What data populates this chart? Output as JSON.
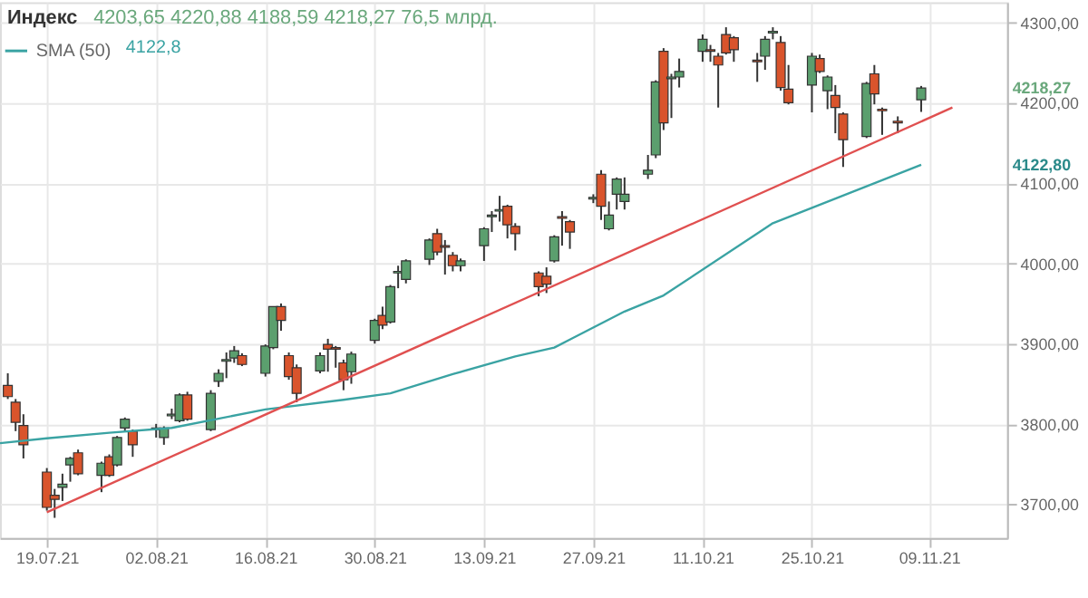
{
  "chart_data": {
    "type": "candlestick",
    "title": "Индекс",
    "subtitle": "4203,65   4220,88   4188,59   4218,27   76,5 млрд.",
    "x": [
      "2021-07-14",
      "2021-07-15",
      "2021-07-16",
      "2021-07-19",
      "2021-07-20",
      "2021-07-21",
      "2021-07-22",
      "2021-07-23",
      "2021-07-26",
      "2021-07-27",
      "2021-07-28",
      "2021-07-29",
      "2021-07-30",
      "2021-08-02",
      "2021-08-03",
      "2021-08-04",
      "2021-08-05",
      "2021-08-06",
      "2021-08-09",
      "2021-08-10",
      "2021-08-11",
      "2021-08-12",
      "2021-08-13",
      "2021-08-16",
      "2021-08-17",
      "2021-08-18",
      "2021-08-19",
      "2021-08-20",
      "2021-08-23",
      "2021-08-24",
      "2021-08-25",
      "2021-08-26",
      "2021-08-27",
      "2021-08-30",
      "2021-08-31",
      "2021-09-01",
      "2021-09-02",
      "2021-09-03",
      "2021-09-06",
      "2021-09-07",
      "2021-09-08",
      "2021-09-09",
      "2021-09-10",
      "2021-09-13",
      "2021-09-14",
      "2021-09-15",
      "2021-09-16",
      "2021-09-17",
      "2021-09-20",
      "2021-09-21",
      "2021-09-22",
      "2021-09-23",
      "2021-09-24",
      "2021-09-27",
      "2021-09-28",
      "2021-09-29",
      "2021-09-30",
      "2021-10-01",
      "2021-10-04",
      "2021-10-05",
      "2021-10-06",
      "2021-10-07",
      "2021-10-08",
      "2021-10-11",
      "2021-10-12",
      "2021-10-13",
      "2021-10-14",
      "2021-10-15",
      "2021-10-18",
      "2021-10-19",
      "2021-10-20",
      "2021-10-21",
      "2021-10-22",
      "2021-10-25",
      "2021-10-26",
      "2021-10-27",
      "2021-10-28",
      "2021-10-29",
      "2021-11-01",
      "2021-11-02",
      "2021-11-03",
      "2021-11-05",
      "2021-11-08"
    ],
    "ohlc": [
      [
        3848,
        3863,
        3831,
        3834
      ],
      [
        3827,
        3831,
        3791,
        3802
      ],
      [
        3798,
        3812,
        3757,
        3774
      ],
      [
        3740,
        3745,
        3692,
        3696
      ],
      [
        3711,
        3719,
        3683,
        3706
      ],
      [
        3721,
        3738,
        3704,
        3725
      ],
      [
        3749,
        3759,
        3728,
        3757
      ],
      [
        3764,
        3768,
        3736,
        3738
      ],
      [
        3736,
        3753,
        3715,
        3751
      ],
      [
        3759,
        3762,
        3734,
        3736
      ],
      [
        3749,
        3785,
        3747,
        3783
      ],
      [
        3795,
        3808,
        3791,
        3806
      ],
      [
        3791,
        3793,
        3759,
        3774
      ],
      [
        3795,
        3800,
        3783,
        3793
      ],
      [
        3783,
        3797,
        3774,
        3795
      ],
      [
        3810,
        3819,
        3806,
        3812
      ],
      [
        3804,
        3838,
        3802,
        3836
      ],
      [
        3836,
        3840,
        3804,
        3806
      ],
      [
        3793,
        3842,
        3791,
        3838
      ],
      [
        3853,
        3868,
        3846,
        3863
      ],
      [
        3878,
        3889,
        3857,
        3880
      ],
      [
        3882,
        3897,
        3876,
        3891
      ],
      [
        3885,
        3888,
        3872,
        3874
      ],
      [
        3863,
        3899,
        3859,
        3897
      ],
      [
        3895,
        3946,
        3893,
        3946
      ],
      [
        3946,
        3950,
        3916,
        3929
      ],
      [
        3885,
        3889,
        3855,
        3859
      ],
      [
        3870,
        3874,
        3827,
        3838
      ],
      [
        3866,
        3889,
        3863,
        3885
      ],
      [
        3899,
        3906,
        3865,
        3893
      ],
      [
        3895,
        3897,
        3870,
        3893
      ],
      [
        3876,
        3880,
        3842,
        3855
      ],
      [
        3865,
        3890,
        3850,
        3887
      ],
      [
        3904,
        3931,
        3900,
        3929
      ],
      [
        3935,
        3946,
        3918,
        3923
      ],
      [
        3927,
        3973,
        3925,
        3971
      ],
      [
        3988,
        3997,
        3969,
        3990
      ],
      [
        3980,
        4005,
        3975,
        4003
      ],
      [
        4005,
        4031,
        3998,
        4029
      ],
      [
        4037,
        4043,
        4010,
        4014
      ],
      [
        4022,
        4029,
        3986,
        4020
      ],
      [
        4010,
        4014,
        3990,
        3997
      ],
      [
        3997,
        4006,
        3990,
        4003
      ],
      [
        4022,
        4045,
        4003,
        4043
      ],
      [
        4058,
        4065,
        4039,
        4060
      ],
      [
        4065,
        4084,
        4052,
        4067
      ],
      [
        4071,
        4073,
        4031,
        4048
      ],
      [
        4046,
        4050,
        4016,
        4037
      ],
      [
        3988,
        3990,
        3959,
        3971
      ],
      [
        3984,
        3995,
        3963,
        3974
      ],
      [
        4003,
        4035,
        4001,
        4033
      ],
      [
        4058,
        4065,
        4022,
        4056
      ],
      [
        4052,
        4054,
        4018,
        4039
      ],
      [
        4080,
        4086,
        4075,
        4082
      ],
      [
        4111,
        4116,
        4054,
        4071
      ],
      [
        4043,
        4077,
        4041,
        4060
      ],
      [
        4086,
        4107,
        4067,
        4105
      ],
      [
        4077,
        4107,
        4067,
        4086
      ],
      [
        4111,
        4135,
        4105,
        4116
      ],
      [
        4135,
        4228,
        4131,
        4226
      ],
      [
        4264,
        4268,
        4166,
        4175
      ],
      [
        4230,
        4236,
        4181,
        4232
      ],
      [
        4232,
        4255,
        4219,
        4239
      ],
      [
        4264,
        4285,
        4251,
        4279
      ],
      [
        4266,
        4272,
        4251,
        4264
      ],
      [
        4258,
        4262,
        4194,
        4247
      ],
      [
        4285,
        4294,
        4260,
        4262
      ],
      [
        4281,
        4283,
        4251,
        4266
      ],
      [
        4253,
        4262,
        4226,
        4251
      ],
      [
        4258,
        4283,
        4241,
        4279
      ],
      [
        4287,
        4294,
        4279,
        4289
      ],
      [
        4275,
        4283,
        4215,
        4219
      ],
      [
        4217,
        4247,
        4198,
        4200
      ],
      [
        4222,
        4262,
        4188,
        4258
      ],
      [
        4255,
        4260,
        4237,
        4239
      ],
      [
        4215,
        4234,
        4192,
        4232
      ],
      [
        4209,
        4222,
        4162,
        4194
      ],
      [
        4186,
        4188,
        4120,
        4154
      ],
      [
        4158,
        4226,
        4156,
        4224
      ],
      [
        4236,
        4247,
        4198,
        4211
      ],
      [
        4192,
        4194,
        4160,
        4190
      ],
      [
        4177,
        4183,
        4162,
        4175
      ],
      [
        4203.65,
        4220.88,
        4188.59,
        4218.27
      ]
    ],
    "colors": [
      "#d9542c",
      "#d9542c",
      "#d9542c",
      "#d9542c",
      "#d9542c",
      "#5b9f6e",
      "#5b9f6e",
      "#d9542c",
      "#5b9f6e",
      "#d9542c",
      "#5b9f6e",
      "#5b9f6e",
      "#d9542c",
      "#d9542c",
      "#5b9f6e",
      "#5b9f6e",
      "#5b9f6e",
      "#d9542c",
      "#5b9f6e",
      "#5b9f6e",
      "#5b9f6e",
      "#5b9f6e",
      "#d9542c",
      "#5b9f6e",
      "#5b9f6e",
      "#d9542c",
      "#d9542c",
      "#d9542c",
      "#5b9f6e",
      "#d9542c",
      "#d9542c",
      "#d9542c",
      "#5b9f6e",
      "#5b9f6e",
      "#d9542c",
      "#5b9f6e",
      "#5b9f6e",
      "#5b9f6e",
      "#5b9f6e",
      "#d9542c",
      "#d9542c",
      "#d9542c",
      "#5b9f6e",
      "#5b9f6e",
      "#5b9f6e",
      "#5b9f6e",
      "#d9542c",
      "#d9542c",
      "#d9542c",
      "#d9542c",
      "#5b9f6e",
      "#d9542c",
      "#d9542c",
      "#5b9f6e",
      "#d9542c",
      "#5b9f6e",
      "#5b9f6e",
      "#5b9f6e",
      "#5b9f6e",
      "#5b9f6e",
      "#d9542c",
      "#5b9f6e",
      "#5b9f6e",
      "#5b9f6e",
      "#d9542c",
      "#d9542c",
      "#d9542c",
      "#d9542c",
      "#d9542c",
      "#5b9f6e",
      "#5b9f6e",
      "#d9542c",
      "#d9542c",
      "#5b9f6e",
      "#d9542c",
      "#5b9f6e",
      "#d9542c",
      "#d9542c",
      "#5b9f6e",
      "#d9542c",
      "#d9542c",
      "#d9542c",
      "#5b9f6e"
    ],
    "series": [
      {
        "name": "SMA (50)",
        "type": "line",
        "color": "#3aa3a3",
        "x": [
          "2021-07-13",
          "2021-07-19",
          "2021-07-27",
          "2021-08-04",
          "2021-08-16",
          "2021-08-26",
          "2021-09-01",
          "2021-09-09",
          "2021-09-17",
          "2021-09-22",
          "2021-09-24",
          "2021-10-01",
          "2021-10-06",
          "2021-10-20",
          "2021-11-08"
        ],
        "values": [
          3776,
          3782,
          3789,
          3795,
          3818,
          3830,
          3838,
          3862,
          3884,
          3895,
          3905,
          3940,
          3960,
          4050,
          4122.8
        ]
      },
      {
        "type": "line",
        "color": "#e05050",
        "x": [
          "2021-07-19",
          "2021-11-12"
        ],
        "values": [
          3690,
          4194
        ]
      }
    ],
    "annotations": [
      "4122,8",
      "4218,27",
      "4122,80"
    ],
    "xlim": [
      "2021-07-13",
      "2021-11-19"
    ],
    "ylim": [
      3658,
      4325
    ],
    "xticks": [
      {
        "value": "2021-07-19",
        "label": "19.07.21"
      },
      {
        "value": "2021-08-02",
        "label": "02.08.21"
      },
      {
        "value": "2021-08-16",
        "label": "16.08.21"
      },
      {
        "value": "2021-08-30",
        "label": "30.08.21"
      },
      {
        "value": "2021-09-13",
        "label": "13.09.21"
      },
      {
        "value": "2021-09-27",
        "label": "27.09.21"
      },
      {
        "value": "2021-10-11",
        "label": "11.10.21"
      },
      {
        "value": "2021-10-25",
        "label": "25.10.21"
      },
      {
        "value": "2021-11-09",
        "label": "09.11.21"
      }
    ],
    "yticks": [
      {
        "value": 3700,
        "label": "3700,00"
      },
      {
        "value": 3800,
        "label": "3800,00"
      },
      {
        "value": 3900,
        "label": "3900,00"
      },
      {
        "value": 4000,
        "label": "4000,00"
      },
      {
        "value": 4100,
        "label": "4100,00"
      },
      {
        "value": 4200,
        "label": "4200,00"
      },
      {
        "value": 4300,
        "label": "4300,00"
      }
    ],
    "grid": true,
    "legend": "top left"
  }
}
